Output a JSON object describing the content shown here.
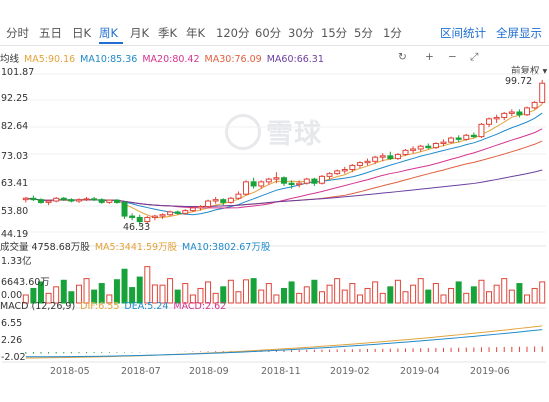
{
  "tabs": [
    {
      "label": "分时",
      "active": false
    },
    {
      "label": "五日",
      "active": false
    },
    {
      "label": "日K",
      "active": false
    },
    {
      "label": "周K",
      "active": true
    },
    {
      "label": "月K",
      "active": false
    },
    {
      "label": "季K",
      "active": false
    },
    {
      "label": "年K",
      "active": false
    },
    {
      "label": "120分",
      "active": false
    },
    {
      "label": "60分",
      "active": false
    },
    {
      "label": "30分",
      "active": false
    },
    {
      "label": "15分",
      "active": false
    },
    {
      "label": "5分",
      "active": false
    },
    {
      "label": "1分",
      "active": false
    }
  ],
  "toolbar": {
    "interval_stats": "区间统计",
    "fullscreen": "全屏显示",
    "fuquan": "前复权"
  },
  "controls": {
    "reset_icon": "reset-icon",
    "zoom_in": "+",
    "zoom_out": "−",
    "expand_icon": "expand-icon"
  },
  "ma": {
    "label": "均线",
    "items": [
      {
        "text": "MA5:90.16",
        "color": "#e3a33b"
      },
      {
        "text": "MA10:85.36",
        "color": "#1f8acb"
      },
      {
        "text": "MA20:80.42",
        "color": "#d4348f"
      },
      {
        "text": "MA30:76.09",
        "color": "#e25f3f"
      },
      {
        "text": "MA60:66.31",
        "color": "#6a3fa0"
      }
    ]
  },
  "price_axis": [
    "101.87",
    "92.25",
    "82.64",
    "73.03",
    "63.41",
    "53.80",
    "44.19"
  ],
  "price_marks": {
    "high": "99.72",
    "low": "46.33"
  },
  "volume": {
    "label": "成交量 4758.68万股",
    "items": [
      {
        "text": "MA5:3441.59万股",
        "color": "#e3a33b"
      },
      {
        "text": "MA10:3802.67万股",
        "color": "#1f8acb"
      }
    ],
    "axis": [
      "1.33亿",
      "6643.60万",
      "0.00"
    ]
  },
  "macd": {
    "label": "MACD (12,26,9)",
    "items": [
      {
        "text": "DIF:6.55",
        "color": "#e3a33b"
      },
      {
        "text": "DEA:5.24",
        "color": "#1f8acb"
      },
      {
        "text": "MACD:2.62",
        "color": "#d4348f"
      }
    ],
    "axis": [
      "6.55",
      "2.26",
      "-2.02"
    ]
  },
  "x_axis": [
    "2018-05",
    "2018-07",
    "2018-09",
    "2018-11",
    "2019-02",
    "2019-04",
    "2019-06"
  ],
  "colors": {
    "up": "#e0453a",
    "down": "#18a33a",
    "accent": "#1f6fd2"
  },
  "chart_data": {
    "type": "candlestick",
    "period": "weekly",
    "ylim": [
      44.19,
      101.87
    ],
    "candles": [
      [
        56,
        57,
        55,
        56.5
      ],
      [
        56.5,
        57.5,
        55.5,
        56
      ],
      [
        56,
        56.5,
        54.5,
        55
      ],
      [
        55,
        56,
        54,
        55.5
      ],
      [
        55.5,
        57,
        55,
        56.5
      ],
      [
        56.5,
        57,
        55.5,
        56
      ],
      [
        56,
        56.5,
        55,
        55.5
      ],
      [
        55.5,
        56.5,
        54.8,
        56
      ],
      [
        56,
        57,
        55.5,
        56.3
      ],
      [
        56.3,
        57,
        55.5,
        56
      ],
      [
        56,
        56.5,
        54.5,
        55
      ],
      [
        55,
        56,
        54.5,
        55.8
      ],
      [
        55.8,
        56.2,
        54.5,
        55
      ],
      [
        55,
        55.5,
        49,
        50
      ],
      [
        50,
        51,
        48.5,
        49.5
      ],
      [
        49.5,
        50.5,
        46.33,
        48
      ],
      [
        48,
        50,
        47.5,
        49.5
      ],
      [
        49.5,
        50.5,
        48.5,
        50
      ],
      [
        50,
        51,
        49,
        50.5
      ],
      [
        50.5,
        52,
        50,
        51.5
      ],
      [
        51.5,
        52,
        50.5,
        51
      ],
      [
        51,
        52.5,
        50.5,
        52
      ],
      [
        52,
        53.5,
        51.5,
        53
      ],
      [
        53,
        54,
        52,
        53.5
      ],
      [
        53.5,
        56,
        53,
        55.5
      ],
      [
        55.5,
        57,
        54.5,
        56
      ],
      [
        56,
        56.5,
        54,
        55
      ],
      [
        55,
        57,
        54.5,
        56.5
      ],
      [
        56.5,
        59,
        56,
        58
      ],
      [
        58,
        63,
        57.5,
        62.5
      ],
      [
        62.5,
        64,
        60,
        61
      ],
      [
        61,
        63,
        60,
        62.5
      ],
      [
        62.5,
        64,
        61.5,
        63.5
      ],
      [
        63.5,
        66,
        62,
        64
      ],
      [
        64,
        64.5,
        61,
        62
      ],
      [
        62,
        63,
        60,
        61.5
      ],
      [
        61.5,
        63,
        60.5,
        62
      ],
      [
        62,
        64,
        61.5,
        63.5
      ],
      [
        63.5,
        64,
        61,
        62
      ],
      [
        62,
        65,
        61.5,
        64.5
      ],
      [
        64.5,
        66,
        63.5,
        65.5
      ],
      [
        65.5,
        67,
        65,
        66.5
      ],
      [
        66.5,
        68,
        65.5,
        67
      ],
      [
        67,
        69,
        66,
        68.5
      ],
      [
        68.5,
        70,
        67.5,
        69.5
      ],
      [
        69.5,
        71,
        68.5,
        70
      ],
      [
        70,
        72,
        69,
        71.5
      ],
      [
        71.5,
        73,
        70,
        72
      ],
      [
        72,
        73.5,
        70.5,
        71
      ],
      [
        71,
        73,
        70.5,
        72.5
      ],
      [
        72.5,
        74.5,
        72,
        74
      ],
      [
        74,
        75.5,
        73,
        74.5
      ],
      [
        74.5,
        76,
        73.5,
        75.5
      ],
      [
        75.5,
        76.5,
        74.5,
        75
      ],
      [
        75,
        77,
        74.5,
        76.5
      ],
      [
        76.5,
        78,
        75.5,
        77
      ],
      [
        77,
        79,
        76.5,
        78.5
      ],
      [
        78.5,
        79.5,
        77,
        78
      ],
      [
        78,
        80,
        77.5,
        79.5
      ],
      [
        79.5,
        80.5,
        78.5,
        79
      ],
      [
        79,
        84,
        78.5,
        83.5
      ],
      [
        83.5,
        86,
        82.5,
        85.5
      ],
      [
        85.5,
        87,
        84,
        86
      ],
      [
        86,
        88,
        85,
        87.5
      ],
      [
        87.5,
        89,
        86.5,
        88
      ],
      [
        88,
        89,
        86,
        87
      ],
      [
        87,
        90,
        86.5,
        89.5
      ],
      [
        89.5,
        92,
        89,
        91.5
      ],
      [
        91.5,
        99.72,
        91,
        98.5
      ]
    ],
    "volume_ymax": 13300
  }
}
